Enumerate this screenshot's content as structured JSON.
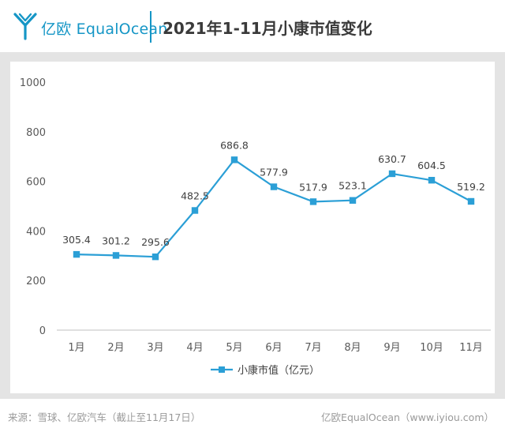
{
  "header": {
    "brand": "亿欧 EqualOcean",
    "title": "2021年1-11月小康市值变化"
  },
  "colors": {
    "accent": "#1596c6",
    "series": "#2b9fd6",
    "panel_bg": "#e4e4e4",
    "text_muted": "#9a9a9a"
  },
  "icons": {
    "logo": "equalocean-logo-icon"
  },
  "chart_data": {
    "type": "line",
    "title": "2021年1-11月小康市值变化",
    "categories": [
      "1月",
      "2月",
      "3月",
      "4月",
      "5月",
      "6月",
      "7月",
      "8月",
      "9月",
      "10月",
      "11月"
    ],
    "series": [
      {
        "name": "小康市值（亿元）",
        "values": [
          305.4,
          301.2,
          295.6,
          482.5,
          686.8,
          577.9,
          517.9,
          523.1,
          630.7,
          604.5,
          519.2
        ],
        "labels": [
          "305.4",
          "301.2",
          "295.6",
          "482.5",
          "686.8",
          "577.9",
          "517.9",
          "523.1",
          "630.7",
          "604.5",
          "519.2"
        ],
        "marker": "square"
      }
    ],
    "ylim": [
      0,
      1000
    ],
    "yticks": [
      0,
      200,
      400,
      600,
      800,
      1000
    ],
    "ytick_labels": [
      "0",
      "200",
      "400",
      "600",
      "800",
      "1000"
    ],
    "xlabel": "",
    "ylabel": "",
    "grid": false,
    "legend": "bottom"
  },
  "footer": {
    "source": "来源：雪球、亿欧汽车（截止至11月17日）",
    "credit": "亿欧EqualOcean（www.iyiou.com）"
  }
}
